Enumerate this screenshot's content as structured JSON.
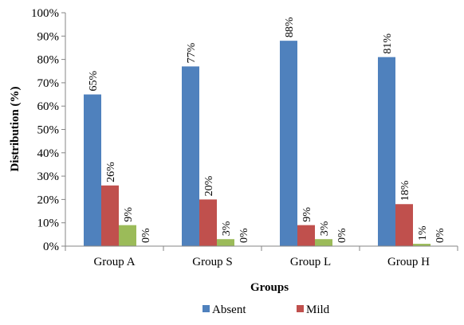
{
  "chart_data": {
    "type": "bar",
    "title": "",
    "xlabel": "Groups",
    "ylabel": "Distribution (%)",
    "ylim": [
      0,
      100
    ],
    "y_ticks": [
      "0%",
      "10%",
      "20%",
      "30%",
      "40%",
      "50%",
      "60%",
      "70%",
      "80%",
      "90%",
      "100%"
    ],
    "categories": [
      "Group A",
      "Group S",
      "Group L",
      "Group H"
    ],
    "series": [
      {
        "name": "Absent",
        "color": "#4F81BD",
        "values": [
          65,
          77,
          88,
          81
        ],
        "labels": [
          "65%",
          "77%",
          "88%",
          "81%"
        ]
      },
      {
        "name": "Mild",
        "color": "#C0504D",
        "values": [
          26,
          20,
          9,
          18
        ],
        "labels": [
          "26%",
          "20%",
          "9%",
          "18%"
        ]
      },
      {
        "name": "",
        "color": "#9BBB59",
        "values": [
          9,
          3,
          3,
          1
        ],
        "labels": [
          "9%",
          "3%",
          "3%",
          "1%"
        ]
      },
      {
        "name": "",
        "color": "#8064A2",
        "values": [
          0,
          0,
          0,
          0
        ],
        "labels": [
          "0%",
          "0%",
          "0%",
          "0%"
        ]
      }
    ],
    "legend": {
      "placement": "bottom",
      "entries": [
        "Absent",
        "Mild"
      ]
    },
    "grid": false
  }
}
